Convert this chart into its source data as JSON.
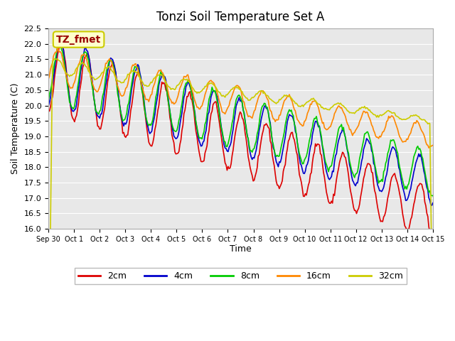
{
  "title": "Tonzi Soil Temperature Set A",
  "xlabel": "Time",
  "ylabel": "Soil Temperature (C)",
  "ylim": [
    16.0,
    22.5
  ],
  "annotation_text": "TZ_fmet",
  "annotation_box_color": "#ffffcc",
  "annotation_text_color": "#990000",
  "annotation_border_color": "#cccc00",
  "plot_bg_color": "#e8e8e8",
  "series_colors": {
    "2cm": "#dd0000",
    "4cm": "#0000cc",
    "8cm": "#00cc00",
    "16cm": "#ff8800",
    "32cm": "#cccc00"
  },
  "series_linewidths": {
    "2cm": 1.2,
    "4cm": 1.2,
    "8cm": 1.2,
    "16cm": 1.2,
    "32cm": 1.2
  },
  "xtick_positions": [
    0,
    1,
    2,
    3,
    4,
    5,
    6,
    7,
    8,
    9,
    10,
    11,
    12,
    13,
    14,
    15
  ],
  "xtick_labels": [
    "Sep 30",
    "Oct 1",
    "Oct 2",
    "Oct 3",
    "Oct 4",
    "Oct 5",
    "Oct 6",
    "Oct 7",
    "Oct 8",
    "Oct 9",
    "Oct 10",
    "Oct 11",
    "Oct 12",
    "Oct 13",
    "Oct 14",
    "Oct 15"
  ],
  "ytick_vals": [
    16.0,
    16.5,
    17.0,
    17.5,
    18.0,
    18.5,
    19.0,
    19.5,
    20.0,
    20.5,
    21.0,
    21.5,
    22.0,
    22.5
  ],
  "n_points": 384
}
